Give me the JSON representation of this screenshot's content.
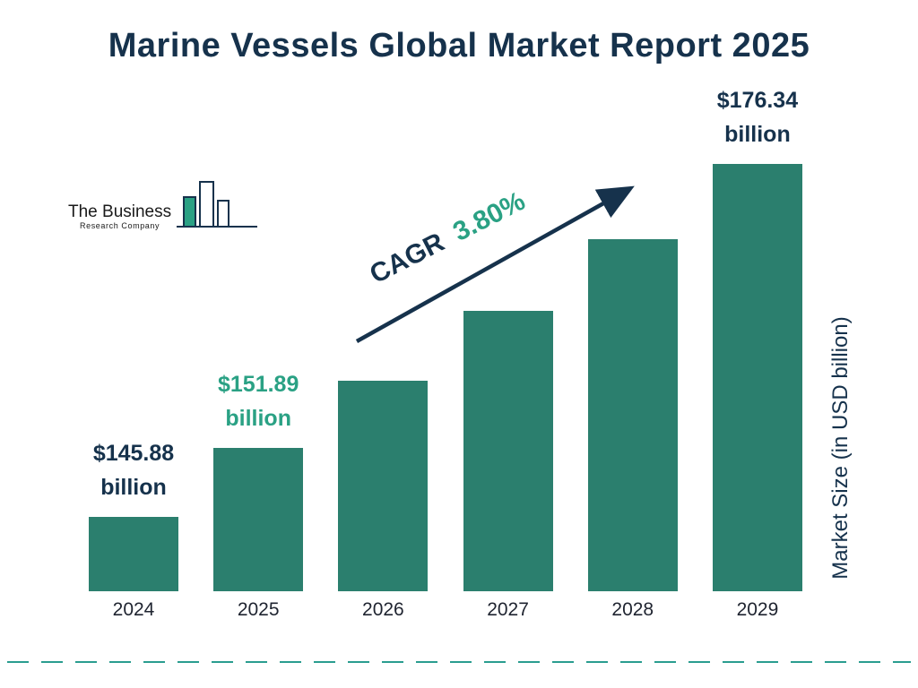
{
  "title": "Marine Vessels Global Market Report 2025",
  "logo": {
    "line1": "The Business",
    "line2": "Research Company"
  },
  "cagr": {
    "prefix": "CAGR",
    "value": "3.80%"
  },
  "y_axis_label": "Market Size (in USD billion)",
  "colors": {
    "bar": "#2b7f6e",
    "navy": "#16324c",
    "teal": "#2aa184"
  },
  "chart_data": {
    "type": "bar",
    "title": "Marine Vessels Global Market Report 2025",
    "categories": [
      "2024",
      "2025",
      "2026",
      "2027",
      "2028",
      "2029"
    ],
    "values": [
      145.88,
      151.89,
      157.66,
      163.65,
      169.87,
      176.34
    ],
    "units": "USD billion",
    "cagr_percent": 3.8,
    "xlabel": "",
    "ylabel": "Market Size (in USD billion)",
    "axis_min": 139.5,
    "axis_max": 176.34,
    "grid": false,
    "legend": false,
    "value_labels": [
      {
        "index": 0,
        "lines": [
          "$145.88",
          "billion"
        ],
        "color": "#16324c"
      },
      {
        "index": 1,
        "lines": [
          "$151.89",
          "billion"
        ],
        "color": "#2aa184"
      },
      {
        "index": 5,
        "lines": [
          "$176.34",
          "billion"
        ],
        "color": "#16324c"
      }
    ]
  }
}
